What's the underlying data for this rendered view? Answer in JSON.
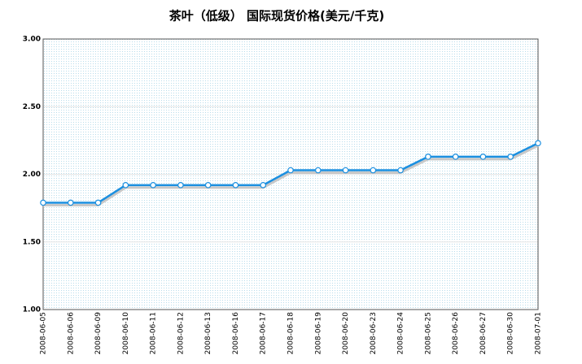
{
  "chart_data": {
    "type": "line",
    "title": "茶叶（低级） 国际现货价格(美元/千克)",
    "categories": [
      "2008-06-05",
      "2008-06-06",
      "2008-06-09",
      "2008-06-10",
      "2008-06-11",
      "2008-06-12",
      "2008-06-13",
      "2008-06-16",
      "2008-06-17",
      "2008-06-18",
      "2008-06-19",
      "2008-06-20",
      "2008-06-23",
      "2008-06-24",
      "2008-06-25",
      "2008-06-26",
      "2008-06-27",
      "2008-06-30",
      "2008-07-01"
    ],
    "values": [
      1.79,
      1.79,
      1.79,
      1.92,
      1.92,
      1.92,
      1.92,
      1.92,
      1.92,
      2.03,
      2.03,
      2.03,
      2.03,
      2.03,
      2.13,
      2.13,
      2.13,
      2.13,
      2.23
    ],
    "color": "#1a8fe0",
    "ylim": [
      1,
      3
    ],
    "yticks": [
      {
        "value": 1,
        "label": "1.00"
      },
      {
        "value": 1.5,
        "label": "1.50"
      },
      {
        "value": 2,
        "label": "2.00"
      },
      {
        "value": 2.5,
        "label": "2.50"
      },
      {
        "value": 3,
        "label": "3.00"
      }
    ],
    "grid": true
  }
}
